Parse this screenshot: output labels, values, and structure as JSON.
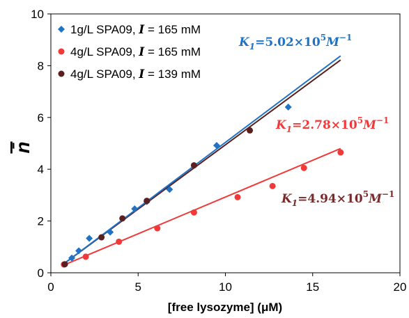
{
  "chart_data": {
    "type": "scatter",
    "xlabel": "[free lysozyme] (μM)",
    "ylabel": "n̄",
    "xlim": [
      0,
      20
    ],
    "ylim": [
      0,
      10
    ],
    "x_ticks": [
      "0",
      "5",
      "10",
      "15",
      "20"
    ],
    "y_ticks": [
      "0",
      "2",
      "4",
      "6",
      "8",
      "10"
    ],
    "grid": false,
    "legend_position": "top-left",
    "series": [
      {
        "name": "1g/L SPA09, I = 165 mM",
        "legend_prefix": "1g/L SPA09, ",
        "legend_italic": "I",
        "legend_suffix": " = 165 mM",
        "marker": "diamond",
        "color": "#1f72c4",
        "points": [
          [
            1.2,
            0.57
          ],
          [
            1.6,
            0.85
          ],
          [
            2.2,
            1.33
          ],
          [
            3.4,
            1.57
          ],
          [
            4.8,
            2.47
          ],
          [
            5.5,
            2.75
          ],
          [
            6.8,
            3.22
          ],
          [
            9.5,
            4.92
          ],
          [
            13.6,
            6.4
          ]
        ],
        "fit_line": [
          [
            0.75,
            0.35
          ],
          [
            16.6,
            8.38
          ]
        ],
        "annotation": {
          "prefix": "K",
          "sub": "1",
          "value": "=5.02×10",
          "sup": "5",
          "unit": "M",
          "unit_sup": "−1"
        }
      },
      {
        "name": "4g/L SPA09, I = 165 mM",
        "legend_prefix": "4g/L SPA09, ",
        "legend_italic": "I",
        "legend_suffix": " = 165 mM",
        "marker": "circle",
        "color": "#f03a3a",
        "points": [
          [
            0.75,
            0.32
          ],
          [
            2.0,
            0.62
          ],
          [
            3.9,
            1.2
          ],
          [
            6.1,
            1.72
          ],
          [
            8.2,
            2.33
          ],
          [
            10.7,
            2.92
          ],
          [
            12.7,
            3.35
          ],
          [
            14.5,
            4.05
          ],
          [
            16.6,
            4.65
          ]
        ],
        "fit_line": [
          [
            0.75,
            0.3
          ],
          [
            16.6,
            4.8
          ]
        ],
        "annotation": {
          "prefix": "K",
          "sub": "1",
          "value": "=2.78×10",
          "sup": "5",
          "unit": "M",
          "unit_sup": "−1"
        }
      },
      {
        "name": "4g/L SPA09, I = 139 mM",
        "legend_prefix": "4g/L SPA09, ",
        "legend_italic": "I",
        "legend_suffix": " = 139 mM",
        "marker": "circle",
        "color": "#5a1f1f",
        "points": [
          [
            0.8,
            0.33
          ],
          [
            2.9,
            1.37
          ],
          [
            4.1,
            2.1
          ],
          [
            5.5,
            2.78
          ],
          [
            8.2,
            4.15
          ],
          [
            11.4,
            5.5
          ]
        ],
        "fit_line": [
          [
            0.75,
            0.35
          ],
          [
            16.6,
            8.22
          ]
        ],
        "annotation": {
          "prefix": "K",
          "sub": "1",
          "value": "=4.94×10",
          "sup": "5",
          "unit": "M",
          "unit_sup": "−1"
        }
      }
    ],
    "annotation_colors": [
      "#1f72c4",
      "#f03a3a",
      "#7a2a2a"
    ]
  }
}
